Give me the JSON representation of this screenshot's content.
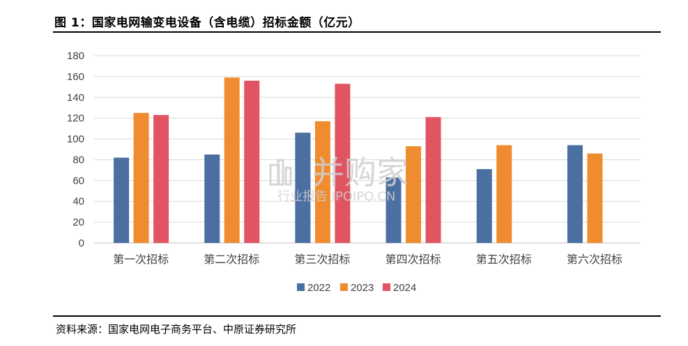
{
  "figure": {
    "title": "图 1：国家电网输变电设备（含电缆）招标金额（亿元）",
    "source": "资料来源：国家电网电子商务平台、中原证券研究所"
  },
  "watermark": {
    "main": "并购家",
    "sub": "行业报告 IPOIPO.CN"
  },
  "colors": {
    "2022": "#4a6fa0",
    "2023": "#ef8c2f",
    "2024": "#e05561",
    "grid": "#d9d9d9",
    "axis": "#bfbfbf"
  },
  "chart_data": {
    "type": "bar",
    "title": "",
    "xlabel": "",
    "ylabel": "",
    "ylim": [
      0,
      180
    ],
    "yticks": [
      0,
      20,
      40,
      60,
      80,
      100,
      120,
      140,
      160,
      180
    ],
    "grid": true,
    "legend_position": "bottom",
    "categories": [
      "第一次招标",
      "第二次招标",
      "第三次招标",
      "第四次招标",
      "第五次招标",
      "第六次招标"
    ],
    "series": [
      {
        "name": "2022",
        "values": [
          82,
          85,
          106,
          63,
          71,
          94
        ]
      },
      {
        "name": "2023",
        "values": [
          125,
          159,
          117,
          93,
          94,
          86
        ]
      },
      {
        "name": "2024",
        "values": [
          123,
          156,
          153,
          121,
          null,
          null
        ]
      }
    ]
  }
}
